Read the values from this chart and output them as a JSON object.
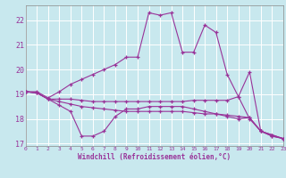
{
  "xlabel": "Windchill (Refroidissement éolien,°C)",
  "background_color": "#c8e8ee",
  "grid_color": "#ffffff",
  "line_color": "#993399",
  "xlim": [
    0,
    23
  ],
  "ylim": [
    16.9,
    22.6
  ],
  "yticks": [
    17,
    18,
    19,
    20,
    21,
    22
  ],
  "xticks": [
    0,
    1,
    2,
    3,
    4,
    5,
    6,
    7,
    8,
    9,
    10,
    11,
    12,
    13,
    14,
    15,
    16,
    17,
    18,
    19,
    20,
    21,
    22,
    23
  ],
  "series": [
    [
      19.1,
      19.1,
      18.85,
      19.1,
      19.4,
      19.6,
      19.8,
      20.0,
      20.2,
      20.5,
      20.5,
      22.3,
      22.2,
      22.3,
      20.7,
      20.7,
      21.8,
      21.5,
      19.8,
      18.9,
      19.9,
      17.5,
      17.3,
      17.2
    ],
    [
      19.1,
      19.05,
      18.8,
      18.8,
      18.8,
      18.75,
      18.7,
      18.7,
      18.7,
      18.7,
      18.7,
      18.7,
      18.7,
      18.7,
      18.7,
      18.75,
      18.75,
      18.75,
      18.75,
      18.9,
      18.0,
      17.5,
      17.3,
      17.2
    ],
    [
      19.1,
      19.05,
      18.8,
      18.7,
      18.6,
      18.5,
      18.45,
      18.4,
      18.35,
      18.3,
      18.3,
      18.3,
      18.3,
      18.3,
      18.3,
      18.25,
      18.2,
      18.2,
      18.15,
      18.1,
      18.05,
      17.5,
      17.35,
      17.2
    ],
    [
      19.1,
      19.05,
      18.8,
      18.55,
      18.3,
      17.3,
      17.3,
      17.5,
      18.1,
      18.4,
      18.4,
      18.5,
      18.5,
      18.5,
      18.5,
      18.4,
      18.3,
      18.2,
      18.1,
      18.0,
      18.05,
      17.5,
      17.35,
      17.2
    ]
  ]
}
